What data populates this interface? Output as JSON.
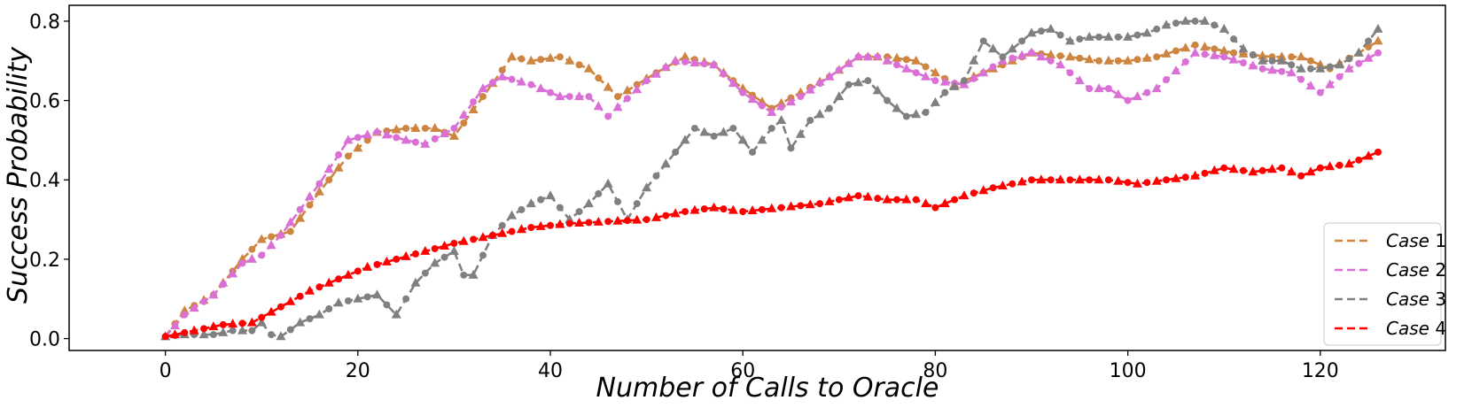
{
  "chart_data": {
    "type": "line",
    "title": "",
    "xlabel": "Number of Calls to Oracle",
    "ylabel": "Success Probability",
    "xlim": [
      -10,
      133
    ],
    "ylim": [
      -0.03,
      0.84
    ],
    "xticks": [
      0,
      20,
      40,
      60,
      80,
      100,
      120
    ],
    "yticks": [
      0.0,
      0.2,
      0.4,
      0.6,
      0.8
    ],
    "ytick_labels": [
      "0.0",
      "0.2",
      "0.4",
      "0.6",
      "0.8"
    ],
    "legend_position": "lower-right",
    "markers": "alternating circle and triangle",
    "series": [
      {
        "name": "Case 1",
        "legend_prefix": "Case",
        "legend_number": "1",
        "color": "#cd853f",
        "anchors": [
          [
            0,
            0.005
          ],
          [
            2,
            0.07
          ],
          [
            5,
            0.11
          ],
          [
            8,
            0.2
          ],
          [
            10,
            0.25
          ],
          [
            13,
            0.27
          ],
          [
            16,
            0.37
          ],
          [
            19,
            0.46
          ],
          [
            22,
            0.52
          ],
          [
            25,
            0.53
          ],
          [
            28,
            0.53
          ],
          [
            30,
            0.51
          ],
          [
            33,
            0.61
          ],
          [
            36,
            0.71
          ],
          [
            38,
            0.7
          ],
          [
            41,
            0.71
          ],
          [
            44,
            0.68
          ],
          [
            47,
            0.61
          ],
          [
            51,
            0.67
          ],
          [
            54,
            0.71
          ],
          [
            57,
            0.69
          ],
          [
            60,
            0.63
          ],
          [
            63,
            0.58
          ],
          [
            66,
            0.62
          ],
          [
            69,
            0.66
          ],
          [
            72,
            0.71
          ],
          [
            75,
            0.71
          ],
          [
            78,
            0.7
          ],
          [
            82,
            0.64
          ],
          [
            85,
            0.67
          ],
          [
            90,
            0.72
          ],
          [
            94,
            0.71
          ],
          [
            97,
            0.7
          ],
          [
            100,
            0.7
          ],
          [
            103,
            0.71
          ],
          [
            107,
            0.74
          ],
          [
            111,
            0.72
          ],
          [
            115,
            0.71
          ],
          [
            118,
            0.71
          ],
          [
            121,
            0.68
          ],
          [
            124,
            0.72
          ],
          [
            126,
            0.75
          ]
        ]
      },
      {
        "name": "Case 2",
        "legend_prefix": "Case",
        "legend_number": "2",
        "color": "#da70d6",
        "anchors": [
          [
            0,
            0.005
          ],
          [
            2,
            0.06
          ],
          [
            5,
            0.11
          ],
          [
            8,
            0.19
          ],
          [
            10,
            0.21
          ],
          [
            12,
            0.26
          ],
          [
            16,
            0.39
          ],
          [
            19,
            0.5
          ],
          [
            22,
            0.52
          ],
          [
            25,
            0.5
          ],
          [
            27,
            0.49
          ],
          [
            30,
            0.53
          ],
          [
            33,
            0.63
          ],
          [
            35,
            0.66
          ],
          [
            38,
            0.64
          ],
          [
            41,
            0.61
          ],
          [
            44,
            0.61
          ],
          [
            46,
            0.56
          ],
          [
            50,
            0.65
          ],
          [
            53,
            0.7
          ],
          [
            57,
            0.69
          ],
          [
            60,
            0.62
          ],
          [
            63,
            0.57
          ],
          [
            66,
            0.61
          ],
          [
            69,
            0.66
          ],
          [
            72,
            0.71
          ],
          [
            74,
            0.71
          ],
          [
            77,
            0.68
          ],
          [
            80,
            0.65
          ],
          [
            83,
            0.64
          ],
          [
            87,
            0.7
          ],
          [
            90,
            0.72
          ],
          [
            93,
            0.69
          ],
          [
            96,
            0.63
          ],
          [
            98,
            0.63
          ],
          [
            100,
            0.6
          ],
          [
            103,
            0.63
          ],
          [
            107,
            0.72
          ],
          [
            110,
            0.71
          ],
          [
            114,
            0.68
          ],
          [
            117,
            0.67
          ],
          [
            120,
            0.62
          ],
          [
            123,
            0.68
          ],
          [
            126,
            0.72
          ]
        ]
      },
      {
        "name": "Case 3",
        "legend_prefix": "Case",
        "legend_number": "3",
        "color": "#808080",
        "anchors": [
          [
            0,
            0.005
          ],
          [
            2,
            0.01
          ],
          [
            5,
            0.01
          ],
          [
            7,
            0.02
          ],
          [
            9,
            0.02
          ],
          [
            10,
            0.04
          ],
          [
            11,
            0.01
          ],
          [
            12,
            0.005
          ],
          [
            14,
            0.04
          ],
          [
            16,
            0.06
          ],
          [
            18,
            0.09
          ],
          [
            20,
            0.1
          ],
          [
            22,
            0.11
          ],
          [
            24,
            0.06
          ],
          [
            26,
            0.14
          ],
          [
            28,
            0.19
          ],
          [
            30,
            0.22
          ],
          [
            31,
            0.16
          ],
          [
            32,
            0.16
          ],
          [
            34,
            0.26
          ],
          [
            36,
            0.31
          ],
          [
            38,
            0.34
          ],
          [
            40,
            0.36
          ],
          [
            42,
            0.3
          ],
          [
            44,
            0.34
          ],
          [
            46,
            0.39
          ],
          [
            48,
            0.3
          ],
          [
            50,
            0.38
          ],
          [
            52,
            0.44
          ],
          [
            54,
            0.5
          ],
          [
            55,
            0.53
          ],
          [
            57,
            0.51
          ],
          [
            59,
            0.53
          ],
          [
            61,
            0.47
          ],
          [
            63,
            0.53
          ],
          [
            64,
            0.55
          ],
          [
            65,
            0.48
          ],
          [
            67,
            0.55
          ],
          [
            69,
            0.58
          ],
          [
            71,
            0.64
          ],
          [
            73,
            0.65
          ],
          [
            75,
            0.6
          ],
          [
            77,
            0.56
          ],
          [
            79,
            0.57
          ],
          [
            81,
            0.62
          ],
          [
            83,
            0.65
          ],
          [
            85,
            0.75
          ],
          [
            87,
            0.71
          ],
          [
            90,
            0.77
          ],
          [
            92,
            0.78
          ],
          [
            94,
            0.75
          ],
          [
            96,
            0.76
          ],
          [
            98,
            0.76
          ],
          [
            100,
            0.76
          ],
          [
            102,
            0.77
          ],
          [
            104,
            0.79
          ],
          [
            106,
            0.8
          ],
          [
            108,
            0.8
          ],
          [
            110,
            0.78
          ],
          [
            112,
            0.73
          ],
          [
            114,
            0.7
          ],
          [
            116,
            0.7
          ],
          [
            118,
            0.68
          ],
          [
            120,
            0.68
          ],
          [
            122,
            0.69
          ],
          [
            124,
            0.72
          ],
          [
            126,
            0.78
          ]
        ]
      },
      {
        "name": "Case 4",
        "legend_prefix": "Case",
        "legend_number": "4",
        "color": "#ff0000",
        "anchors": [
          [
            0,
            0.005
          ],
          [
            3,
            0.02
          ],
          [
            6,
            0.035
          ],
          [
            9,
            0.04
          ],
          [
            12,
            0.08
          ],
          [
            15,
            0.12
          ],
          [
            18,
            0.15
          ],
          [
            21,
            0.18
          ],
          [
            24,
            0.2
          ],
          [
            27,
            0.22
          ],
          [
            30,
            0.24
          ],
          [
            34,
            0.26
          ],
          [
            38,
            0.28
          ],
          [
            42,
            0.29
          ],
          [
            46,
            0.295
          ],
          [
            50,
            0.3
          ],
          [
            54,
            0.32
          ],
          [
            57,
            0.33
          ],
          [
            60,
            0.32
          ],
          [
            64,
            0.33
          ],
          [
            68,
            0.34
          ],
          [
            72,
            0.36
          ],
          [
            75,
            0.35
          ],
          [
            78,
            0.35
          ],
          [
            80,
            0.33
          ],
          [
            83,
            0.36
          ],
          [
            86,
            0.38
          ],
          [
            90,
            0.4
          ],
          [
            94,
            0.4
          ],
          [
            98,
            0.4
          ],
          [
            101,
            0.39
          ],
          [
            104,
            0.4
          ],
          [
            107,
            0.41
          ],
          [
            110,
            0.43
          ],
          [
            113,
            0.42
          ],
          [
            116,
            0.43
          ],
          [
            118,
            0.41
          ],
          [
            120,
            0.43
          ],
          [
            123,
            0.44
          ],
          [
            126,
            0.47
          ]
        ]
      }
    ]
  }
}
